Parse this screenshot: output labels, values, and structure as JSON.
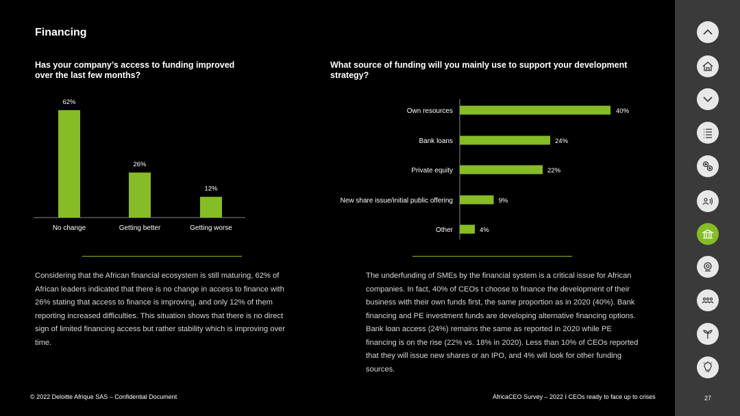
{
  "slide": {
    "title": "Financing",
    "left": {
      "question": "Has your company’s access to funding improved over the last few months?",
      "paragraph": "Considering that the African financial ecosystem is still maturing, 62% of African leaders indicated that there is no change in access to finance with 26% stating that access to finance is improving, and only 12% of them reporting increased difficulties. This situation shows that there is no direct sign of limited financing access but rather stability which is improving over time."
    },
    "right": {
      "question": "What source of funding will you mainly use to support your development strategy?",
      "paragraph": "The underfunding of SMEs by the financial system is a critical issue for African companies. In fact, 40% of CEOs t choose to finance the development of their business with their own funds first, the same proportion as in 2020 (40%). Bank financing and PE investment funds are developing alternative financing options. Bank loan access (24%) remains the same as reported in 2020 while PE financing is on the rise (22% vs. 18% in 2020). Less than 10% of CEOs reported that they will issue new shares or an IPO, and 4% will look for other funding sources."
    }
  },
  "footer": {
    "copyright": "© 2022 Deloitte Afrique SAS – Confidential Document",
    "survey": "AfricaCEO Survey – 2022 I CEOs ready to face up to crises",
    "page": "27"
  },
  "colors": {
    "accent": "#86bc25",
    "sidebar": "#3a3a3a",
    "nav_button": "#e8e8e8"
  },
  "chart_data": [
    {
      "type": "bar",
      "orientation": "vertical",
      "categories": [
        "No change",
        "Getting better",
        "Getting worse"
      ],
      "values": [
        62,
        26,
        12
      ],
      "labels": [
        "62%",
        "26%",
        "12%"
      ],
      "ylim": [
        0,
        62
      ],
      "color": "#86bc25"
    },
    {
      "type": "bar",
      "orientation": "horizontal",
      "categories": [
        "Own resources",
        "Bank loans",
        "Private equity",
        "New share issue/initial public offering",
        "Other"
      ],
      "values": [
        40,
        24,
        22,
        9,
        4
      ],
      "labels": [
        "40%",
        "24%",
        "22%",
        "9%",
        "4%"
      ],
      "xlim": [
        0,
        40
      ],
      "color": "#86bc25"
    }
  ],
  "nav": [
    {
      "icon": "chevron-up-icon",
      "active": false
    },
    {
      "icon": "home-icon",
      "active": false
    },
    {
      "icon": "chevron-down-icon",
      "active": false
    },
    {
      "icon": "list-icon",
      "active": false
    },
    {
      "icon": "gears-icon",
      "active": false
    },
    {
      "icon": "people-voice-icon",
      "active": false
    },
    {
      "icon": "bank-icon",
      "active": true
    },
    {
      "icon": "settings-icon",
      "active": false
    },
    {
      "icon": "community-icon",
      "active": false
    },
    {
      "icon": "plant-icon",
      "active": false
    },
    {
      "icon": "lightbulb-icon",
      "active": false
    }
  ]
}
